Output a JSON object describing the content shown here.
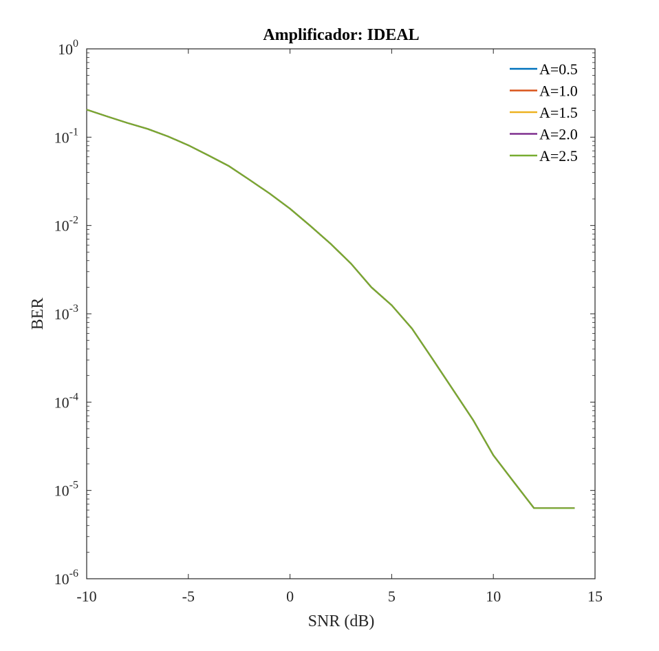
{
  "chart_data": {
    "type": "line",
    "title": "Amplificador: IDEAL",
    "xlabel": "SNR (dB)",
    "ylabel": "BER",
    "xlim": [
      -10,
      15
    ],
    "ylim": [
      1e-06,
      1
    ],
    "yscale": "log",
    "grid": false,
    "legend_position": "top-right",
    "x_ticks": [
      "-10",
      "-5",
      "0",
      "5",
      "10",
      "15"
    ],
    "y_ticks": [
      {
        "base": "10",
        "exp": "-6"
      },
      {
        "base": "10",
        "exp": "-5"
      },
      {
        "base": "10",
        "exp": "-4"
      },
      {
        "base": "10",
        "exp": "-3"
      },
      {
        "base": "10",
        "exp": "-2"
      },
      {
        "base": "10",
        "exp": "-1"
      },
      {
        "base": "10",
        "exp": "0"
      }
    ],
    "x": [
      -10,
      -9,
      -8,
      -7,
      -6,
      -5,
      -4,
      -3,
      -2,
      -1,
      0,
      1,
      2,
      3,
      4,
      5,
      6,
      7,
      8,
      9,
      10,
      11,
      12,
      13,
      14
    ],
    "series": [
      {
        "name": "A=0.5",
        "color": "#0072BD",
        "values": [
          0.205,
          0.172,
          0.145,
          0.124,
          0.102,
          0.081,
          0.062,
          0.047,
          0.033,
          0.023,
          0.0155,
          0.0099,
          0.0062,
          0.0037,
          0.002,
          0.00125,
          0.00068,
          0.00031,
          0.00014,
          6.3e-05,
          2.5e-05,
          1.25e-05,
          6.3e-06,
          6.3e-06,
          6.3e-06
        ]
      },
      {
        "name": "A=1.0",
        "color": "#D95319",
        "values": [
          0.205,
          0.172,
          0.145,
          0.124,
          0.102,
          0.081,
          0.062,
          0.047,
          0.033,
          0.023,
          0.0155,
          0.0099,
          0.0062,
          0.0037,
          0.002,
          0.00125,
          0.00068,
          0.00031,
          0.00014,
          6.3e-05,
          2.5e-05,
          1.25e-05,
          6.3e-06,
          6.3e-06,
          6.3e-06
        ]
      },
      {
        "name": "A=1.5",
        "color": "#EDB120",
        "values": [
          0.205,
          0.172,
          0.145,
          0.124,
          0.102,
          0.081,
          0.062,
          0.047,
          0.033,
          0.023,
          0.0155,
          0.0099,
          0.0062,
          0.0037,
          0.002,
          0.00125,
          0.00068,
          0.00031,
          0.00014,
          6.3e-05,
          2.5e-05,
          1.25e-05,
          6.3e-06,
          6.3e-06,
          6.3e-06
        ]
      },
      {
        "name": "A=2.0",
        "color": "#7E2F8E",
        "values": [
          0.205,
          0.172,
          0.145,
          0.124,
          0.102,
          0.081,
          0.062,
          0.047,
          0.033,
          0.023,
          0.0155,
          0.0099,
          0.0062,
          0.0037,
          0.002,
          0.00125,
          0.00068,
          0.00031,
          0.00014,
          6.3e-05,
          2.5e-05,
          1.25e-05,
          6.3e-06,
          6.3e-06,
          6.3e-06
        ]
      },
      {
        "name": "A=2.5",
        "color": "#77AC30",
        "values": [
          0.205,
          0.172,
          0.145,
          0.124,
          0.102,
          0.081,
          0.062,
          0.047,
          0.033,
          0.023,
          0.0155,
          0.0099,
          0.0062,
          0.0037,
          0.002,
          0.00125,
          0.00068,
          0.00031,
          0.00014,
          6.3e-05,
          2.5e-05,
          1.25e-05,
          6.3e-06,
          6.3e-06,
          6.3e-06
        ]
      }
    ]
  }
}
